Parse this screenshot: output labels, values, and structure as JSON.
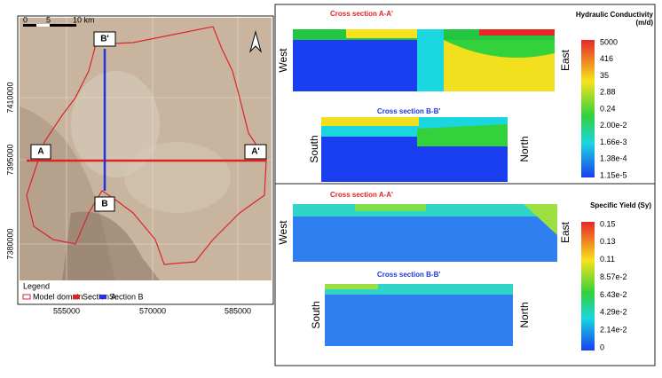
{
  "map": {
    "scale": [
      "0",
      "5",
      "10 km"
    ],
    "section_labels": [
      "B'",
      "A",
      "A'",
      "B"
    ],
    "y_labels": [
      "7410000",
      "7395000",
      "7380000"
    ],
    "x_labels": [
      "555000",
      "570000",
      "585000"
    ],
    "legend": {
      "title": "Legend",
      "items": [
        "Model domain",
        "Section A",
        "Section B"
      ]
    }
  },
  "conductivity": {
    "title": "Hydraulic Conductivity (m/d)",
    "labels": [
      "5000",
      "416",
      "35",
      "2.88",
      "0.24",
      "2.00e-2",
      "1.66e-3",
      "1.38e-4",
      "1.15e-5"
    ],
    "section_aa": {
      "title": "Cross section A-A'",
      "left": "West",
      "right": "East"
    },
    "section_bb": {
      "title": "Cross section B-B'",
      "left": "South",
      "right": "North"
    }
  },
  "specific_yield": {
    "title": "Specific Yield (Sy)",
    "labels": [
      "0.15",
      "0.13",
      "0.11",
      "8.57e-2",
      "6.43e-2",
      "4.29e-2",
      "2.14e-2",
      "0"
    ],
    "section_aa": {
      "title": "Cross section A-A'",
      "left": "West",
      "right": "East"
    },
    "section_bb": {
      "title": "Cross section B-B'",
      "left": "South",
      "right": "North"
    }
  }
}
